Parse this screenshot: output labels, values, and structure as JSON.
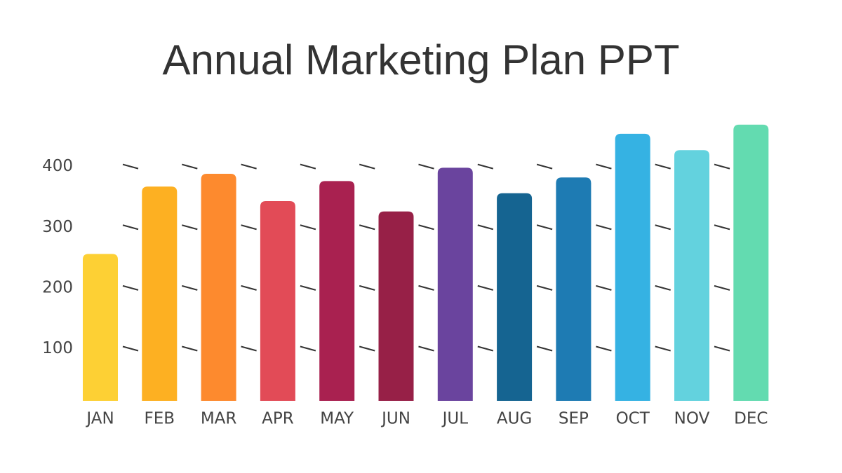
{
  "chart_data": {
    "type": "bar",
    "title": "Annual Marketing Plan PPT",
    "categories": [
      "JAN",
      "FEB",
      "MAR",
      "APR",
      "MAY",
      "JUN",
      "JUL",
      "AUG",
      "SEP",
      "OCT",
      "NOV",
      "DEC"
    ],
    "values": [
      256,
      367,
      388,
      343,
      376,
      326,
      398,
      356,
      382,
      454,
      427,
      469
    ],
    "colors": [
      "#fdd034",
      "#fdb022",
      "#fd8a2e",
      "#e24b57",
      "#a92150",
      "#972047",
      "#6a449e",
      "#156491",
      "#1e7bb3",
      "#35b2e3",
      "#63d2de",
      "#63dbb0"
    ],
    "ylim": [
      14,
      470
    ],
    "yticks": [
      100,
      200,
      300,
      400
    ],
    "grid": true
  }
}
